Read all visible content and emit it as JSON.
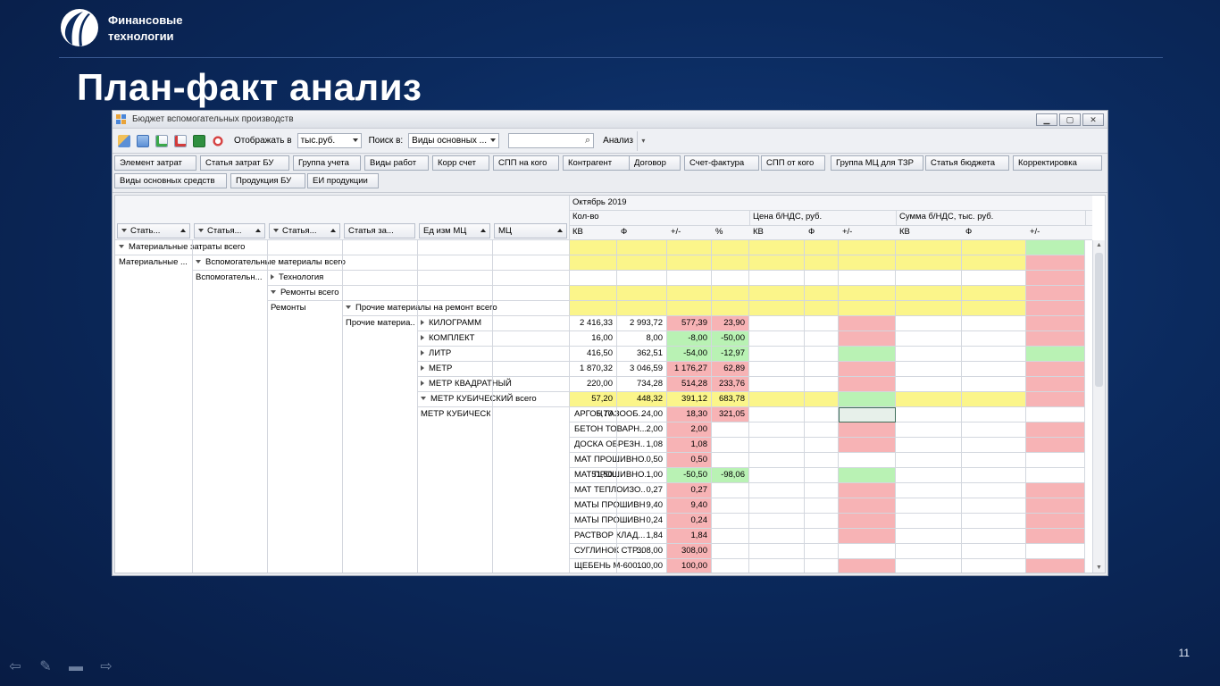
{
  "brand": {
    "line1": "Финансовые",
    "line2": "технологии"
  },
  "slide": {
    "title": "План-факт анализ",
    "page_number": "11"
  },
  "window": {
    "title": "Бюджет вспомогательных производств",
    "toolbar": {
      "display_label": "Отображать в",
      "display_value": "тыс.руб.",
      "search_in_label": "Поиск в:",
      "search_in_value": "Виды основных ...",
      "search_value": "",
      "analyze_label": "Анализ"
    },
    "field_chips": [
      "Элемент затрат",
      "Статья затрат БУ",
      "Группа учета",
      "Виды работ",
      "Корр счет",
      "СПП на кого",
      "Контрагент",
      "Договор",
      "Счет-фактура",
      "СПП от кого",
      "Группа МЦ для ТЗР",
      "Статья бюджета",
      "Корректировка",
      "Виды основных средств",
      "Продукция БУ",
      "ЕИ продукции"
    ],
    "row_fields": [
      "Стать...",
      "Статья...",
      "Статья...",
      "Статья за...",
      "Ед изм МЦ",
      "МЦ"
    ],
    "column_headers": {
      "period": "Октябрь 2019",
      "groups": [
        "Кол-во",
        "Цена б/НДС, руб.",
        "Сумма б/НДС, тыс. руб."
      ],
      "sub": [
        "КВ",
        "Ф",
        "+/-",
        "%",
        "КВ",
        "Ф",
        "+/-",
        "КВ",
        "Ф",
        "+/-"
      ]
    },
    "rows": [
      {
        "label": "Материальные затраты всего",
        "level": 0,
        "expand": "open",
        "highlight": "yellow",
        "q": [
          "",
          "",
          "",
          ""
        ]
      },
      {
        "label": "Вспомогательные материалы всего",
        "parent": "Материальные ...",
        "level": 1,
        "expand": "open",
        "highlight": "yellow",
        "q": [
          "",
          "",
          "",
          ""
        ]
      },
      {
        "label": "Технология",
        "parent": "Вспомогательн...",
        "level": 2,
        "expand": "closed",
        "highlight": "none",
        "q": [
          "",
          "",
          "",
          ""
        ]
      },
      {
        "label": "Ремонты всего",
        "level": 2,
        "expand": "open",
        "highlight": "yellow",
        "q": [
          "",
          "",
          "",
          ""
        ]
      },
      {
        "label": "Прочие материалы на ремонт всего",
        "parent": "Ремонты",
        "level": 3,
        "expand": "open",
        "highlight": "yellow",
        "q": [
          "",
          "",
          "",
          ""
        ]
      },
      {
        "label": "КИЛОГРАММ",
        "parent": "Прочие материа...",
        "level": 4,
        "expand": "closed",
        "highlight": "none",
        "q": [
          "2 416,33",
          "2 993,72",
          "577,39",
          "23,90"
        ],
        "qd": "red"
      },
      {
        "label": "КОМПЛЕКТ",
        "level": 4,
        "expand": "closed",
        "highlight": "none",
        "q": [
          "16,00",
          "8,00",
          "-8,00",
          "-50,00"
        ],
        "qd": "green"
      },
      {
        "label": "ЛИТР",
        "level": 4,
        "expand": "closed",
        "highlight": "none",
        "q": [
          "416,50",
          "362,51",
          "-54,00",
          "-12,97"
        ],
        "qd": "green"
      },
      {
        "label": "МЕТР",
        "level": 4,
        "expand": "closed",
        "highlight": "none",
        "q": [
          "1 870,32",
          "3 046,59",
          "1 176,27",
          "62,89"
        ],
        "qd": "red"
      },
      {
        "label": "МЕТР КВАДРАТНЫЙ",
        "level": 4,
        "expand": "closed",
        "highlight": "none",
        "q": [
          "220,00",
          "734,28",
          "514,28",
          "233,76"
        ],
        "qd": "red"
      },
      {
        "label": "МЕТР КУБИЧЕСКИЙ всего",
        "level": 4,
        "expand": "open",
        "highlight": "yellow",
        "q": [
          "57,20",
          "448,32",
          "391,12",
          "683,78"
        ],
        "qd": "yellow"
      },
      {
        "label": "АРГОН ГАЗООБ...",
        "parent": "МЕТР КУБИЧЕСК...",
        "level": 5,
        "q": [
          "5,70",
          "24,00",
          "18,30",
          "321,05"
        ],
        "qd": "red"
      },
      {
        "label": "БЕТОН ТОВАРН...",
        "level": 5,
        "q": [
          "",
          "2,00",
          "2,00",
          ""
        ],
        "qd": "red"
      },
      {
        "label": "ДОСКА ОБРЕЗН...",
        "level": 5,
        "q": [
          "",
          "1,08",
          "1,08",
          ""
        ],
        "qd": "red"
      },
      {
        "label": "МАТ ПРОШИВНО...",
        "level": 5,
        "q": [
          "",
          "0,50",
          "0,50",
          ""
        ],
        "qd": "red"
      },
      {
        "label": "МАТ ПРОШИВНО...",
        "level": 5,
        "q": [
          "51,50",
          "1,00",
          "-50,50",
          "-98,06"
        ],
        "qd": "green"
      },
      {
        "label": "МАТ ТЕПЛОИЗО...",
        "level": 5,
        "q": [
          "",
          "0,27",
          "0,27",
          ""
        ],
        "qd": "red"
      },
      {
        "label": "МАТЫ ПРОШИВН...",
        "level": 5,
        "q": [
          "",
          "9,40",
          "9,40",
          ""
        ],
        "qd": "red"
      },
      {
        "label": "МАТЫ ПРОШИВН...",
        "level": 5,
        "q": [
          "",
          "0,24",
          "0,24",
          ""
        ],
        "qd": "red"
      },
      {
        "label": "РАСТВОР КЛАД...",
        "level": 5,
        "q": [
          "",
          "1,84",
          "1,84",
          ""
        ],
        "qd": "red"
      },
      {
        "label": "СУГЛИНОК СТР...",
        "level": 5,
        "q": [
          "",
          "308,00",
          "308,00",
          ""
        ],
        "qd": "red"
      },
      {
        "label": "ЩЕБЕНЬ М-600 ...",
        "level": 5,
        "q": [
          "",
          "100,00",
          "100,00",
          ""
        ],
        "qd": "red"
      }
    ],
    "price_dev_colors": [
      "yellow",
      "yellow",
      "none",
      "yellow",
      "yellow",
      "red",
      "red",
      "green",
      "red",
      "red",
      "green",
      "none",
      "red",
      "red",
      "none",
      "green",
      "red",
      "red",
      "red",
      "red",
      "none",
      "red"
    ],
    "sum_dev_colors": [
      "green",
      "red",
      "red",
      "red",
      "red",
      "red",
      "red",
      "green",
      "red",
      "red",
      "red",
      "none",
      "red",
      "red",
      "none",
      "none",
      "red",
      "red",
      "red",
      "red",
      "none",
      "red"
    ],
    "colors": {
      "yellow": "#fbf58a",
      "red": "#f7b3b5",
      "green": "#b9f2b4",
      "selected_cell": "#e7f0ea"
    }
  }
}
